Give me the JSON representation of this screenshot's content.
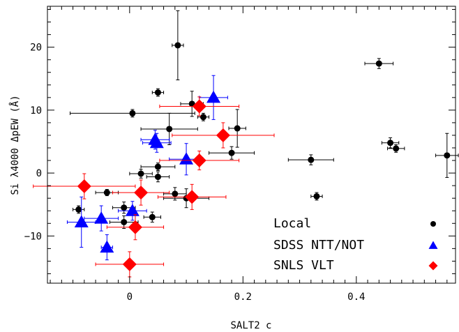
{
  "chart_data": {
    "type": "scatter",
    "xlabel": "SALT2 c",
    "ylabel": "Si λ4000 ΔpEW (Å)",
    "xlim": [
      -0.145,
      0.575
    ],
    "ylim": [
      -17.5,
      26.5
    ],
    "xticks": [
      0,
      0.2,
      0.4
    ],
    "xtick_labels": [
      "0",
      "0.2",
      "0.4"
    ],
    "yticks": [
      -10,
      0,
      10,
      20
    ],
    "ytick_labels": [
      "−10",
      "0",
      "10",
      "20"
    ],
    "legend_position": "bottom-right",
    "series": [
      {
        "name": "Local",
        "marker": "circle",
        "color": "#000000",
        "points": [
          {
            "x": -0.09,
            "y": -5.8,
            "xerr": 0.01,
            "yerr": 0.6
          },
          {
            "x": -0.04,
            "y": -3.1,
            "xerr": 0.02,
            "yerr": 0.5
          },
          {
            "x": -0.01,
            "y": -5.5,
            "xerr": 0.02,
            "yerr": 0.9
          },
          {
            "x": -0.01,
            "y": -7.8,
            "xerr": 0.025,
            "yerr": 1.0
          },
          {
            "x": 0.005,
            "y": 9.5,
            "xerr": 0.11,
            "yerr": 0.6
          },
          {
            "x": 0.02,
            "y": -0.1,
            "xerr": 0.02,
            "yerr": 0.7
          },
          {
            "x": 0.04,
            "y": -7.0,
            "xerr": 0.015,
            "yerr": 0.8
          },
          {
            "x": 0.05,
            "y": 12.8,
            "xerr": 0.01,
            "yerr": 0.6
          },
          {
            "x": 0.05,
            "y": 1.0,
            "xerr": 0.03,
            "yerr": 0.6
          },
          {
            "x": 0.05,
            "y": -0.6,
            "xerr": 0.02,
            "yerr": 0.8
          },
          {
            "x": 0.07,
            "y": 7.0,
            "xerr": 0.05,
            "yerr": 2.5
          },
          {
            "x": 0.08,
            "y": -3.3,
            "xerr": 0.02,
            "yerr": 1.0
          },
          {
            "x": 0.085,
            "y": 20.3,
            "xerr": 0.01,
            "yerr": 5.5
          },
          {
            "x": 0.1,
            "y": -4.0,
            "xerr": 0.04,
            "yerr": 1.5
          },
          {
            "x": 0.11,
            "y": 11.0,
            "xerr": 0.02,
            "yerr": 2.0
          },
          {
            "x": 0.13,
            "y": 8.9,
            "xerr": 0.01,
            "yerr": 0.6
          },
          {
            "x": 0.18,
            "y": 3.2,
            "xerr": 0.04,
            "yerr": 1.0
          },
          {
            "x": 0.19,
            "y": 7.1,
            "xerr": 0.015,
            "yerr": 3.0
          },
          {
            "x": 0.32,
            "y": 2.1,
            "xerr": 0.04,
            "yerr": 0.8
          },
          {
            "x": 0.33,
            "y": -3.7,
            "xerr": 0.01,
            "yerr": 0.6
          },
          {
            "x": 0.44,
            "y": 17.4,
            "xerr": 0.025,
            "yerr": 0.8
          },
          {
            "x": 0.46,
            "y": 4.8,
            "xerr": 0.015,
            "yerr": 0.8
          },
          {
            "x": 0.47,
            "y": 3.9,
            "xerr": 0.015,
            "yerr": 0.6
          },
          {
            "x": 0.56,
            "y": 2.8,
            "xerr": 0.02,
            "yerr": 3.5
          }
        ]
      },
      {
        "name": "SDSS NTT/NOT",
        "marker": "triangle",
        "color": "#0000ff",
        "points": [
          {
            "x": -0.085,
            "y": -7.8,
            "xerr": 0.025,
            "yerr": 4.0
          },
          {
            "x": -0.05,
            "y": -7.2,
            "xerr": 0.03,
            "yerr": 2.0
          },
          {
            "x": -0.04,
            "y": -11.8,
            "xerr": 0.01,
            "yerr": 2.0
          },
          {
            "x": 0.005,
            "y": -6.0,
            "xerr": 0.025,
            "yerr": 1.5
          },
          {
            "x": 0.045,
            "y": 5.3,
            "xerr": 0.025,
            "yerr": 1.5
          },
          {
            "x": 0.048,
            "y": 4.8,
            "xerr": 0.025,
            "yerr": 1.5
          },
          {
            "x": 0.1,
            "y": 2.2,
            "xerr": 0.03,
            "yerr": 2.5
          },
          {
            "x": 0.148,
            "y": 12.0,
            "xerr": 0.025,
            "yerr": 3.5
          }
        ]
      },
      {
        "name": "SNLS VLT",
        "marker": "diamond",
        "color": "#ff0000",
        "points": [
          {
            "x": -0.08,
            "y": -2.1,
            "xerr": 0.09,
            "yerr": 2.0
          },
          {
            "x": 0.0,
            "y": -14.5,
            "xerr": 0.06,
            "yerr": 2.0
          },
          {
            "x": 0.01,
            "y": -8.6,
            "xerr": 0.05,
            "yerr": 2.0
          },
          {
            "x": 0.02,
            "y": -3.1,
            "xerr": 0.05,
            "yerr": 2.0
          },
          {
            "x": 0.11,
            "y": -3.8,
            "xerr": 0.06,
            "yerr": 2.0
          },
          {
            "x": 0.123,
            "y": 10.6,
            "xerr": 0.07,
            "yerr": 1.5
          },
          {
            "x": 0.123,
            "y": 2.0,
            "xerr": 0.07,
            "yerr": 1.5
          },
          {
            "x": 0.165,
            "y": 6.0,
            "xerr": 0.09,
            "yerr": 2.0
          }
        ]
      }
    ]
  }
}
